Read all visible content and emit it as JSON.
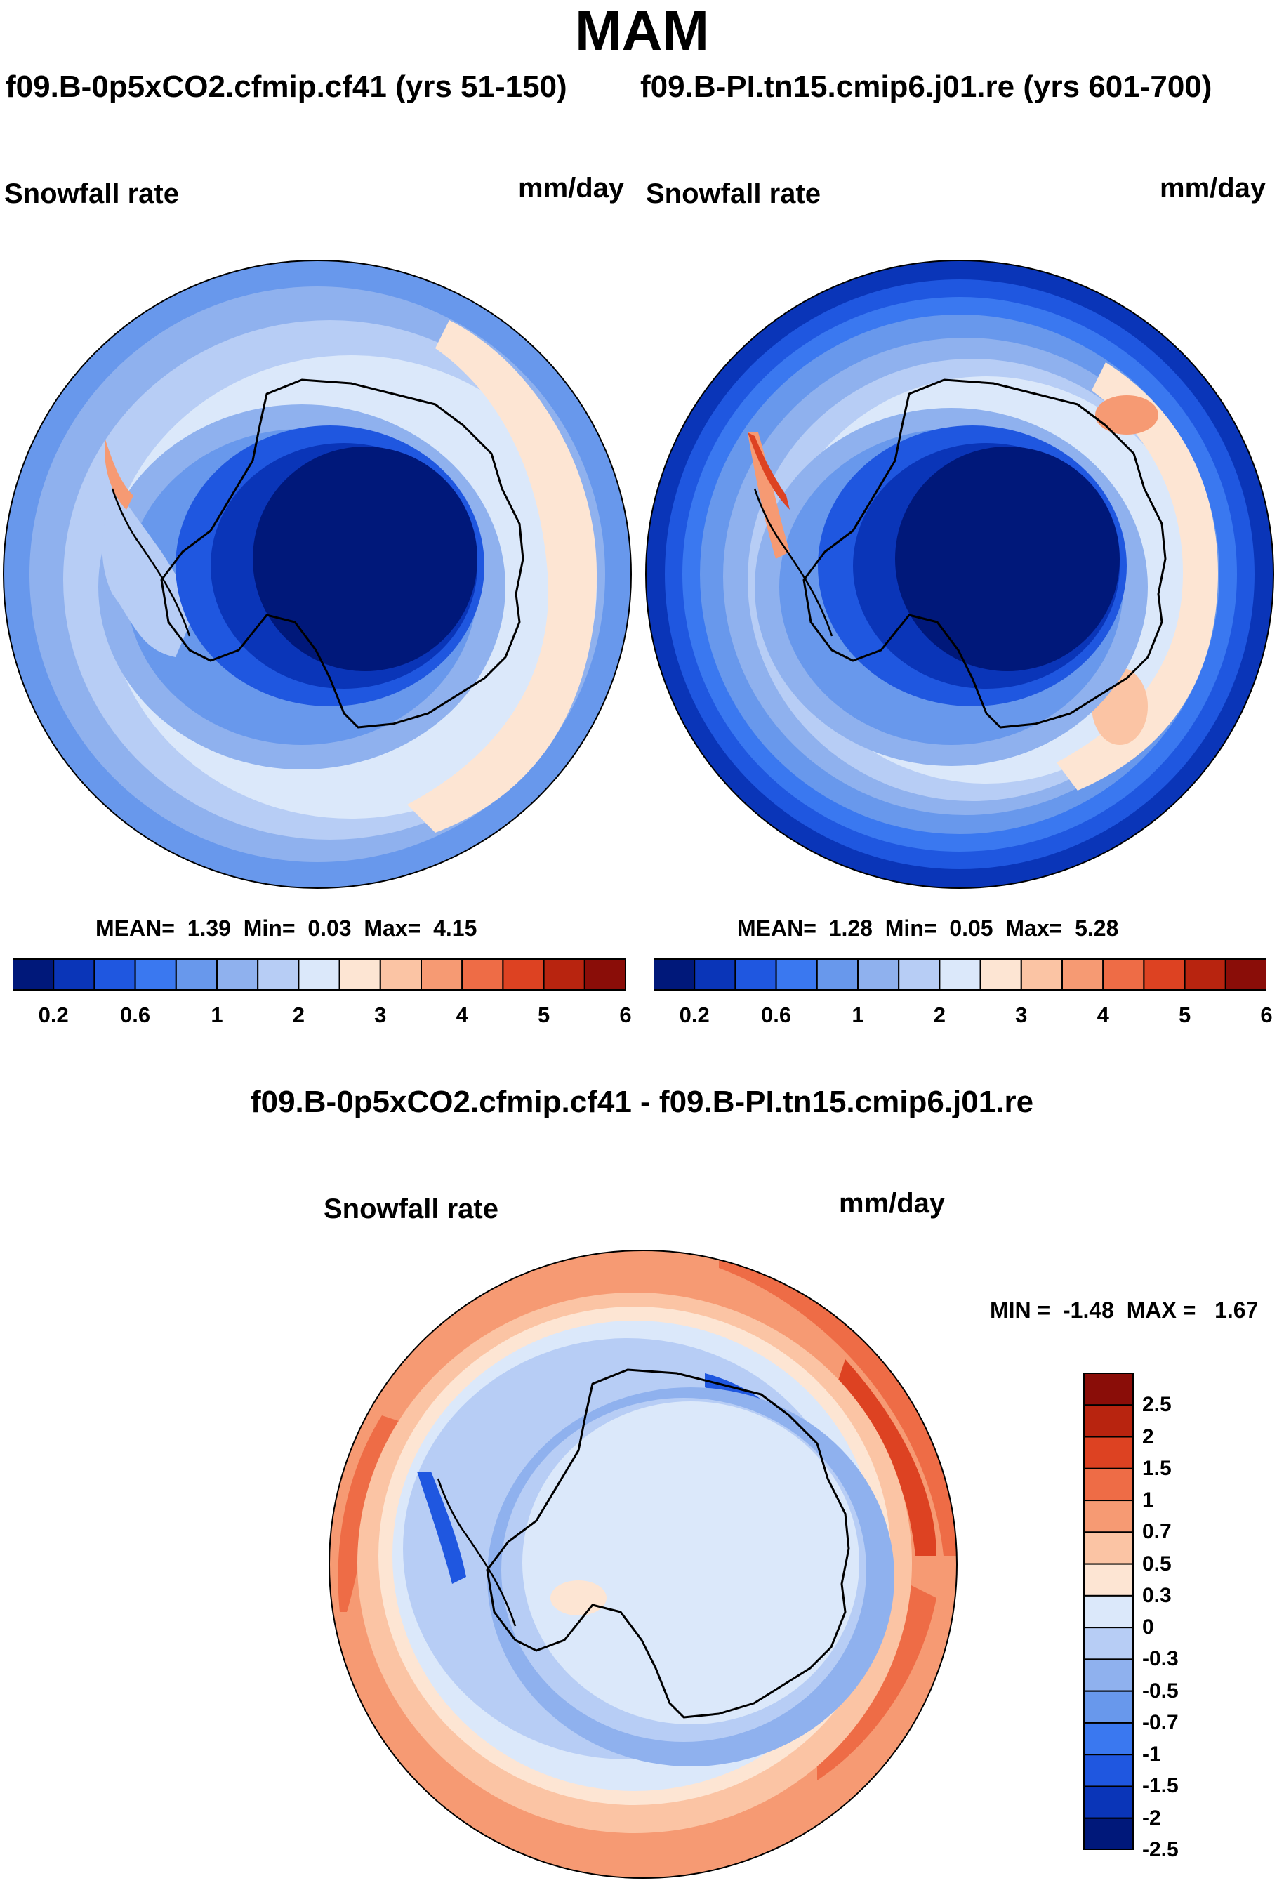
{
  "season": "MAM",
  "panels": [
    {
      "case_title": "f09.B-0p5xCO2.cfmip.cf41 (yrs 51-150)",
      "variable": "Snowfall rate",
      "units": "mm/day",
      "stats": {
        "mean_label": "MEAN=",
        "mean": "1.39",
        "min_label": "Min=",
        "min": "0.03",
        "max_label": "Max=",
        "max": "4.15"
      }
    },
    {
      "case_title": "f09.B-PI.tn15.cmip6.j01.re (yrs 601-700)",
      "variable": "Snowfall rate",
      "units": "mm/day",
      "stats": {
        "mean_label": "MEAN=",
        "mean": "1.28",
        "min_label": "Min=",
        "min": "0.05",
        "max_label": "Max=",
        "max": "5.28"
      }
    }
  ],
  "abs_colorbar": {
    "colors": [
      "#00187a",
      "#0a35b8",
      "#1f57e0",
      "#3a78f0",
      "#6898ec",
      "#8fb1ee",
      "#b7cdf5",
      "#dbe8fa",
      "#fde5d3",
      "#fbc4a4",
      "#f69a73",
      "#ee6c46",
      "#dd4222",
      "#b8240f",
      "#8a0d08"
    ],
    "tick_labels": [
      "0.2",
      "0.6",
      "1",
      "2",
      "3",
      "4",
      "5",
      "6"
    ]
  },
  "difference": {
    "title": "f09.B-0p5xCO2.cfmip.cf41 - f09.B-PI.tn15.cmip6.j01.re",
    "variable": "Snowfall rate",
    "units": "mm/day",
    "stats": {
      "min_label": "MIN =",
      "min": "-1.48",
      "max_label": "MAX =",
      "max": "1.67"
    },
    "colorbar": {
      "colors": [
        "#8a0d08",
        "#b8240f",
        "#dd4222",
        "#ee6c46",
        "#f69a73",
        "#fbc4a4",
        "#fde5d3",
        "#dbe8fa",
        "#b7cdf5",
        "#8fb1ee",
        "#6898ec",
        "#3a78f0",
        "#1f57e0",
        "#0a35b8",
        "#00187a"
      ],
      "tick_labels": [
        "2.5",
        "2",
        "1.5",
        "1",
        "0.7",
        "0.5",
        "0.3",
        "0",
        "-0.3",
        "-0.5",
        "-0.7",
        "-1",
        "-1.5",
        "-2",
        "-2.5"
      ]
    }
  }
}
